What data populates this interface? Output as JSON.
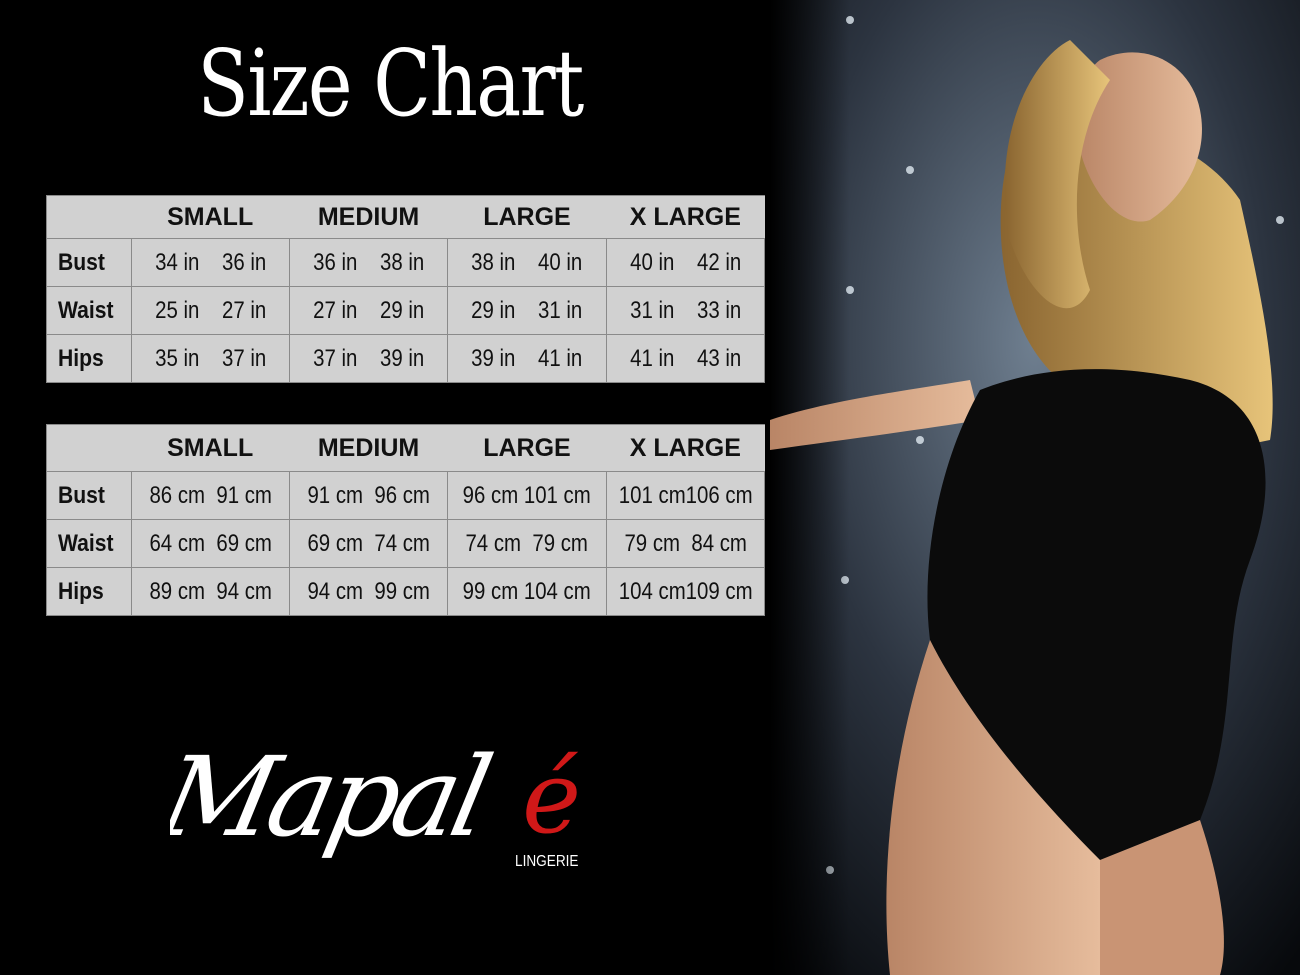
{
  "title": "Size Chart",
  "sizes": [
    "SMALL",
    "MEDIUM",
    "LARGE",
    "X LARGE"
  ],
  "tables": [
    {
      "unit": "in",
      "rows": [
        {
          "label": "Bust",
          "values": [
            "34 in",
            "36 in",
            "36 in",
            "38 in",
            "38 in",
            "40 in",
            "40 in",
            "42 in"
          ]
        },
        {
          "label": "Waist",
          "values": [
            "25 in",
            "27 in",
            "27 in",
            "29 in",
            "29 in",
            "31 in",
            "31 in",
            "33 in"
          ]
        },
        {
          "label": "Hips",
          "values": [
            "35 in",
            "37 in",
            "37 in",
            "39 in",
            "39 in",
            "41 in",
            "41 in",
            "43 in"
          ]
        }
      ]
    },
    {
      "unit": "cm",
      "rows": [
        {
          "label": "Bust",
          "values": [
            "86 cm",
            "91 cm",
            "91 cm",
            "96 cm",
            "96 cm",
            "101 cm",
            "101 cm",
            "106 cm"
          ]
        },
        {
          "label": "Waist",
          "values": [
            "64 cm",
            "69 cm",
            "69 cm",
            "74 cm",
            "74 cm",
            "79  cm",
            "79 cm",
            "84 cm"
          ]
        },
        {
          "label": "Hips",
          "values": [
            "89 cm",
            "94 cm",
            "94 cm",
            "99 cm",
            "99 cm",
            "104 cm",
            "104 cm",
            "109 cm"
          ]
        }
      ]
    }
  ],
  "brand": {
    "name": "Mapalé",
    "tagline": "LINGERIE",
    "accent": "#d01818"
  },
  "colors": {
    "background": "#000000",
    "table": "#d1d1d1"
  }
}
